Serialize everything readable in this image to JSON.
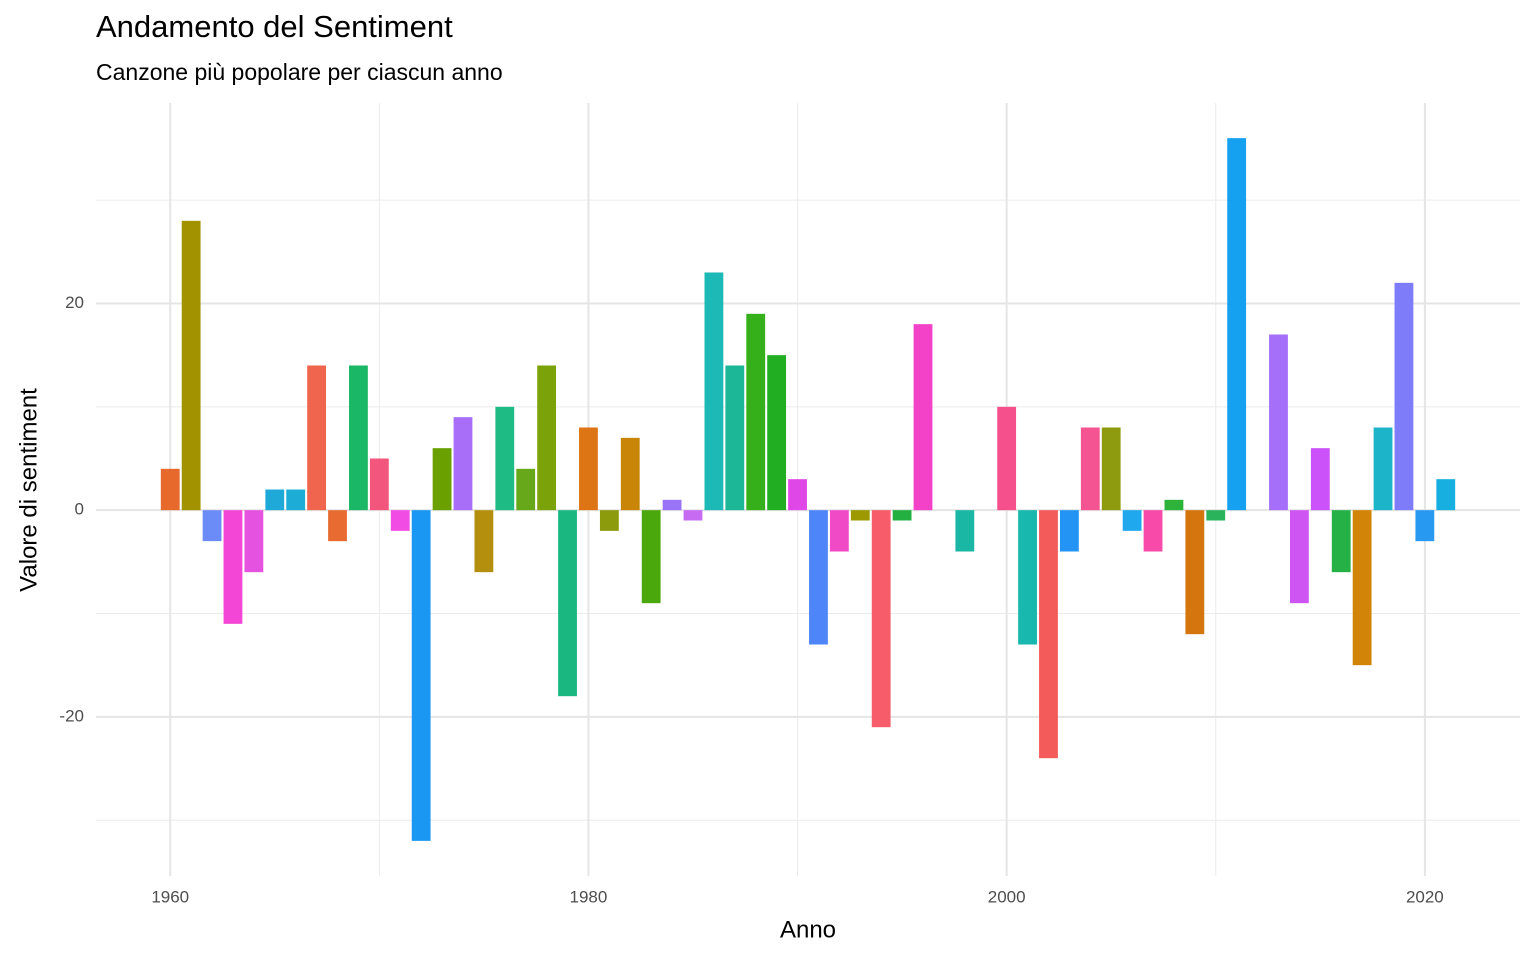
{
  "chart_data": {
    "type": "bar",
    "title": "Andamento del Sentiment",
    "subtitle": "Canzone più popolare per ciascun anno",
    "x_label": "Anno",
    "y_label": "Valore di sentiment",
    "x": [
      1960,
      1961,
      1962,
      1963,
      1964,
      1965,
      1966,
      1967,
      1968,
      1969,
      1970,
      1971,
      1972,
      1973,
      1974,
      1975,
      1976,
      1977,
      1978,
      1979,
      1980,
      1981,
      1982,
      1983,
      1984,
      1985,
      1986,
      1987,
      1988,
      1989,
      1990,
      1991,
      1992,
      1993,
      1994,
      1995,
      1996,
      1998,
      2000,
      2001,
      2002,
      2003,
      2004,
      2005,
      2006,
      2007,
      2008,
      2009,
      2010,
      2011,
      2013,
      2014,
      2015,
      2016,
      2017,
      2018,
      2019,
      2020,
      2021
    ],
    "values": [
      4,
      28,
      -3,
      -11,
      -6,
      2,
      2,
      14,
      -3,
      14,
      5,
      -2,
      -32,
      6,
      9,
      -6,
      10,
      4,
      14,
      -18,
      8,
      -2,
      7,
      -9,
      1,
      -1,
      23,
      14,
      19,
      15,
      3,
      -13,
      -4,
      -1,
      -21,
      -1,
      18,
      -4,
      10,
      -13,
      -24,
      -4,
      8,
      8,
      -2,
      -4,
      1,
      -12,
      -1,
      36,
      17,
      -9,
      6,
      -6,
      -15,
      8,
      22,
      -3,
      3
    ],
    "colors": [
      "#E7692B",
      "#A39200",
      "#6B8CF6",
      "#F346D6",
      "#E652E0",
      "#1FA9D8",
      "#1CACD5",
      "#F0654D",
      "#E86C32",
      "#1AB866",
      "#F3567C",
      "#F14CE3",
      "#1A97F3",
      "#6AA000",
      "#A86EF7",
      "#B48F0D",
      "#1FBB84",
      "#66A81A",
      "#7CA20A",
      "#1AB880",
      "#DD7514",
      "#8C9B0B",
      "#C98508",
      "#4AA80C",
      "#9A74F7",
      "#C66BF2",
      "#1CB9B6",
      "#1BB796",
      "#36B01A",
      "#22AE22",
      "#E047E7",
      "#4E86FA",
      "#F14AC7",
      "#9C9A00",
      "#F65C6A",
      "#23B040",
      "#F442C8",
      "#1AB8A4",
      "#F6508C",
      "#18B8AE",
      "#F35B5B",
      "#2394F4",
      "#F55493",
      "#8E9B0E",
      "#20A8EE",
      "#F84AA8",
      "#2DB33A",
      "#D4760D",
      "#2AB35A",
      "#16A1F0",
      "#A56FFA",
      "#CF55F3",
      "#CB51F9",
      "#25B145",
      "#D18408",
      "#1CB4C8",
      "#7F7CFA",
      "#2799F0",
      "#17AEE0"
    ],
    "bar_width": 0.9,
    "xlim": [
      1956.45,
      2024.55
    ],
    "xticks": [
      1960,
      1980,
      2000,
      2020
    ],
    "x_minor_ticks": [
      1970,
      1990,
      2010
    ],
    "ylim": [
      -35.4,
      39.4
    ],
    "yticks": [
      -20,
      0,
      20
    ],
    "y_minor_ticks": [
      -30,
      -10,
      10,
      30
    ],
    "grid": true
  }
}
